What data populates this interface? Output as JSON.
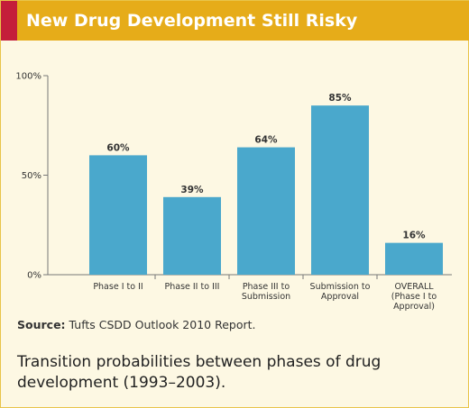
{
  "header": {
    "title": "New Drug Development Still Risky"
  },
  "chart_data": {
    "type": "bar",
    "categories": [
      [
        "Phase I to II"
      ],
      [
        "Phase II to III"
      ],
      [
        "Phase III to",
        "Submission"
      ],
      [
        "Submission to",
        "Approval"
      ],
      [
        "OVERALL",
        "(Phase I to",
        "Approval)"
      ]
    ],
    "values": [
      60,
      39,
      64,
      85,
      16
    ],
    "value_labels": [
      "60%",
      "39%",
      "64%",
      "85%",
      "16%"
    ],
    "yticks": [
      {
        "value": 0,
        "label": "0%"
      },
      {
        "value": 50,
        "label": "50%"
      },
      {
        "value": 100,
        "label": "100%"
      }
    ],
    "ylim": [
      0,
      100
    ],
    "bar_color": "#4aa8cc",
    "grid": false
  },
  "source": {
    "label": "Source:",
    "text": "Tufts CSDD Outlook 2010 Report."
  },
  "caption": "Transition probabilities between phases of drug development (1993–2003)."
}
